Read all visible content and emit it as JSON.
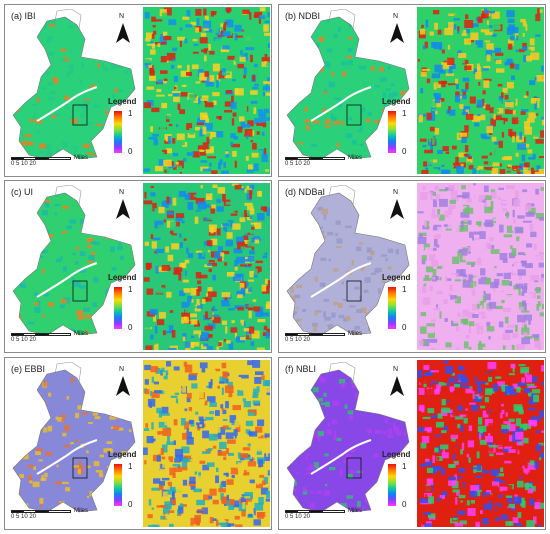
{
  "panels": [
    {
      "label": "(a) IBI",
      "legend_title": "Legend",
      "legend_max": "1",
      "legend_min": "0",
      "north": "N",
      "scale_ticks": "0  5  10      20",
      "scale_unit": "Miles",
      "region_colors": [
        "#2bd07a",
        "#20c88a",
        "#f07a20"
      ],
      "zoom_colors": [
        "#e02010",
        "#28d070",
        "#ffd020",
        "#1090f0"
      ]
    },
    {
      "label": "(b) NDBI",
      "legend_title": "Legend",
      "legend_max": "1",
      "legend_min": "0",
      "north": "N",
      "scale_ticks": "0  5  10      20",
      "scale_unit": "Miles",
      "region_colors": [
        "#2bd07a",
        "#18c0a0",
        "#f08020"
      ],
      "zoom_colors": [
        "#e02010",
        "#30d068",
        "#ffc820",
        "#1088f0"
      ]
    },
    {
      "label": "(c) UI",
      "legend_title": "Legend",
      "legend_max": "1",
      "legend_min": "0",
      "north": "N",
      "scale_ticks": "0  5  10      20",
      "scale_unit": "Miles",
      "region_colors": [
        "#30d070",
        "#18b8b0",
        "#f08020"
      ],
      "zoom_colors": [
        "#e02010",
        "#28c878",
        "#ffd020",
        "#1488f0"
      ]
    },
    {
      "label": "(d) NDBaI",
      "legend_title": "Legend",
      "legend_max": "1",
      "legend_min": "0",
      "north": "N",
      "scale_ticks": "0  5  10      20",
      "scale_unit": "Miles",
      "region_colors": [
        "#b0b0d8",
        "#9898c8",
        "#c0a080"
      ],
      "zoom_colors": [
        "#a080e0",
        "#f0b0f0",
        "#70c070",
        "#e8a0e8"
      ]
    },
    {
      "label": "(e) EBBI",
      "legend_title": "Legend",
      "legend_max": "1",
      "legend_min": "0",
      "north": "N",
      "scale_ticks": "0  5  10      20",
      "scale_unit": "Miles",
      "region_colors": [
        "#8888d8",
        "#f0c020",
        "#f07020"
      ],
      "zoom_colors": [
        "#3068f0",
        "#e8d030",
        "#f06020",
        "#20b0c0"
      ]
    },
    {
      "label": "(f) NBLI",
      "legend_title": "Legend",
      "legend_max": "1",
      "legend_min": "0",
      "north": "N",
      "scale_ticks": "0  5  10      20",
      "scale_unit": "Miles",
      "region_colors": [
        "#8848e8",
        "#b040f0",
        "#30c070"
      ],
      "zoom_colors": [
        "#3050f0",
        "#e02010",
        "#28d070",
        "#ff40ff"
      ]
    }
  ]
}
